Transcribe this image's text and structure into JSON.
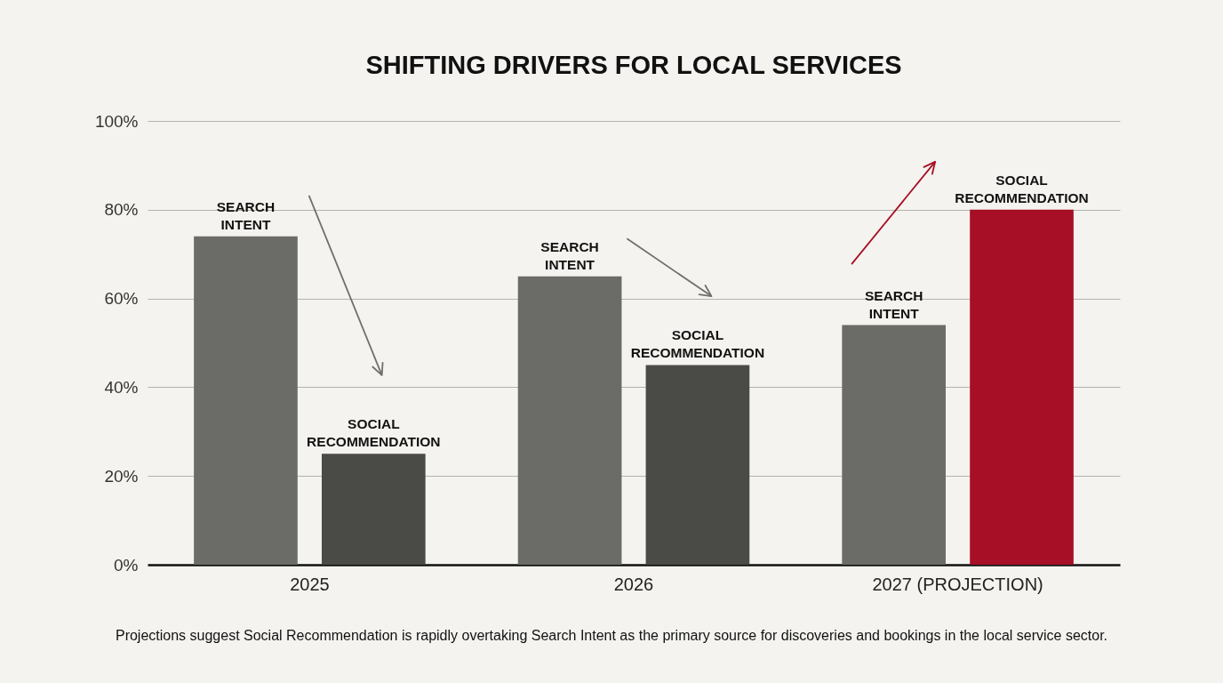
{
  "chart_data": {
    "type": "bar",
    "title": "SHIFTING DRIVERS FOR LOCAL SERVICES",
    "categories": [
      "2025",
      "2026",
      "2027 (PROJECTION)"
    ],
    "series": [
      {
        "name": "SEARCH INTENT",
        "color": "#6b6b67",
        "values": [
          74,
          65,
          54
        ]
      },
      {
        "name": "SOCIAL RECOMMENDATION",
        "colors": [
          "#4a4b46",
          "#4a4b46",
          "#a60f25"
        ],
        "values": [
          25,
          45,
          80
        ]
      }
    ],
    "ylim": [
      0,
      100
    ],
    "yticks": [
      {
        "value": 0,
        "label": "0%"
      },
      {
        "value": 20,
        "label": "20%"
      },
      {
        "value": 40,
        "label": "40%"
      },
      {
        "value": 60,
        "label": "60%"
      },
      {
        "value": 80,
        "label": "80%"
      },
      {
        "value": 100,
        "label": "100%"
      }
    ],
    "grid": "y",
    "annotations": [
      "Projections suggest Social Recommendation is rapidly overtaking Search Intent as the primary source for discoveries and bookings in the local service sector."
    ]
  }
}
